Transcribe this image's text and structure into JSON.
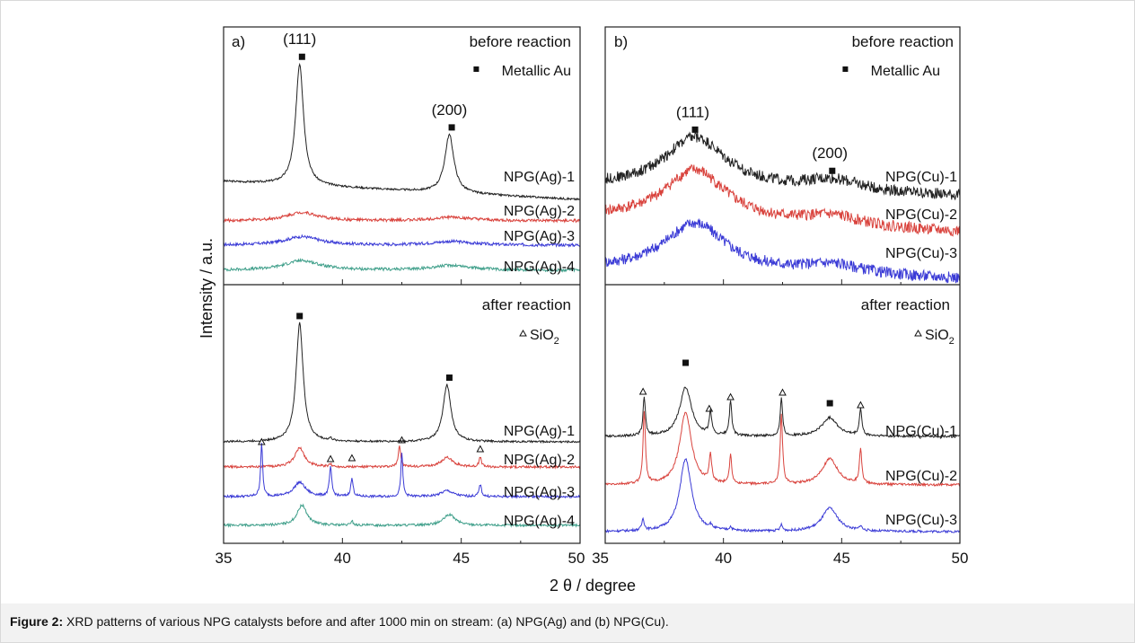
{
  "colors": {
    "black": "#222222",
    "red": "#d9433d",
    "blue": "#3b3bd6",
    "teal": "#3f9f8a"
  },
  "caption": {
    "label": "Figure 2:",
    "text": " XRD patterns of various NPG catalysts before and after 1000 min on stream: (a) NPG(Ag) and (b) NPG(Cu)."
  },
  "chart_data": {
    "type": "line",
    "xlabel": "2 θ / degree",
    "ylabel": "Intensity / a.u.",
    "xlim": [
      35,
      50
    ],
    "xticks": [
      "35",
      "40",
      "45",
      "50"
    ],
    "grid": false,
    "panels": [
      {
        "id": "a-before",
        "panel_label": "a)",
        "header": "before reaction",
        "legend": "Metallic Au",
        "legend_symbol": "square",
        "miller_labels": [
          {
            "text": "(111)",
            "x": 38.2,
            "peak_index": 0
          },
          {
            "text": "(200)",
            "x": 44.5,
            "peak_index": 1
          }
        ],
        "markers": [
          {
            "symbol": "square",
            "x": 38.3,
            "over_peak": 0
          },
          {
            "symbol": "square",
            "x": 44.6,
            "over_peak": 1
          }
        ],
        "series": [
          {
            "name": "NPG(Ag)-1",
            "color": "black",
            "noise": 0.008,
            "baseline": 0.0,
            "slope": -0.01,
            "peaks": [
              [
                38.2,
                1.0,
                0.2
              ],
              [
                44.5,
                0.48,
                0.23
              ]
            ]
          },
          {
            "name": "NPG(Ag)-2",
            "color": "red",
            "noise": 0.012,
            "baseline": 0.0,
            "slope": 0.0,
            "peaks": [
              [
                38.3,
                0.07,
                0.8
              ],
              [
                44.6,
                0.03,
                1.0
              ]
            ]
          },
          {
            "name": "NPG(Ag)-3",
            "color": "blue",
            "noise": 0.012,
            "baseline": 0.0,
            "slope": 0.0,
            "peaks": [
              [
                38.3,
                0.07,
                0.9
              ],
              [
                44.6,
                0.03,
                1.0
              ]
            ]
          },
          {
            "name": "NPG(Ag)-4",
            "color": "teal",
            "noise": 0.012,
            "baseline": 0.0,
            "slope": 0.0,
            "peaks": [
              [
                38.3,
                0.08,
                0.9
              ],
              [
                44.6,
                0.04,
                1.0
              ]
            ]
          }
        ]
      },
      {
        "id": "b-before",
        "panel_label": "b)",
        "header": "before reaction",
        "legend": "Metallic Au",
        "legend_symbol": "square",
        "miller_labels": [
          {
            "text": "(111)",
            "x": 38.7,
            "peak_index": 0
          },
          {
            "text": "(200)",
            "x": 44.5,
            "peak_index": 1
          }
        ],
        "markers": [
          {
            "symbol": "square",
            "x": 38.8,
            "over_peak": 0
          },
          {
            "symbol": "square",
            "x": 44.6,
            "over_peak": 1
          }
        ],
        "series": [
          {
            "name": "NPG(Cu)-1",
            "color": "black",
            "noise": 0.035,
            "baseline": 0.0,
            "slope": -0.004,
            "peaks": [
              [
                38.8,
                0.32,
                1.6
              ],
              [
                44.6,
                0.07,
                1.5
              ]
            ]
          },
          {
            "name": "NPG(Cu)-2",
            "color": "red",
            "noise": 0.035,
            "baseline": 0.0,
            "slope": -0.006,
            "peaks": [
              [
                38.8,
                0.32,
                1.6
              ],
              [
                44.6,
                0.06,
                1.5
              ]
            ]
          },
          {
            "name": "NPG(Cu)-3",
            "color": "blue",
            "noise": 0.035,
            "baseline": 0.0,
            "slope": -0.004,
            "peaks": [
              [
                38.8,
                0.3,
                1.6
              ],
              [
                44.6,
                0.06,
                1.5
              ]
            ]
          }
        ]
      },
      {
        "id": "a-after",
        "panel_label": "",
        "header": "after reaction",
        "legend": "SiO",
        "legend_sub": "2",
        "legend_symbol": "triangle",
        "markers": [
          {
            "symbol": "square",
            "x": 38.2,
            "over_peak": 0
          },
          {
            "symbol": "square",
            "x": 44.5,
            "over_peak": 1
          },
          {
            "symbol": "triangle",
            "x": 36.6
          },
          {
            "symbol": "triangle",
            "x": 39.5
          },
          {
            "symbol": "triangle",
            "x": 40.4
          },
          {
            "symbol": "triangle",
            "x": 42.5
          },
          {
            "symbol": "triangle",
            "x": 45.8
          }
        ],
        "series": [
          {
            "name": "NPG(Ag)-1",
            "color": "black",
            "noise": 0.008,
            "baseline": 0.0,
            "slope": 0.0,
            "peaks": [
              [
                38.2,
                1.0,
                0.18
              ],
              [
                44.4,
                0.48,
                0.2
              ],
              [
                39.5,
                0.02,
                0.06
              ]
            ]
          },
          {
            "name": "NPG(Ag)-2",
            "color": "red",
            "noise": 0.01,
            "baseline": 0.0,
            "slope": 0.0,
            "peaks": [
              [
                38.2,
                0.16,
                0.25
              ],
              [
                44.4,
                0.08,
                0.3
              ],
              [
                42.4,
                0.18,
                0.06
              ],
              [
                45.8,
                0.08,
                0.06
              ],
              [
                39.5,
                0.02,
                0.06
              ]
            ]
          },
          {
            "name": "NPG(Ag)-3",
            "color": "blue",
            "noise": 0.01,
            "baseline": 0.0,
            "slope": 0.0,
            "peaks": [
              [
                36.6,
                0.45,
                0.05
              ],
              [
                38.2,
                0.12,
                0.3
              ],
              [
                39.5,
                0.24,
                0.06
              ],
              [
                40.4,
                0.15,
                0.06
              ],
              [
                42.5,
                0.36,
                0.05
              ],
              [
                44.4,
                0.05,
                0.3
              ],
              [
                45.8,
                0.1,
                0.06
              ]
            ]
          },
          {
            "name": "NPG(Ag)-4",
            "color": "teal",
            "noise": 0.01,
            "baseline": 0.0,
            "slope": 0.0,
            "peaks": [
              [
                38.3,
                0.17,
                0.25
              ],
              [
                44.5,
                0.09,
                0.3
              ],
              [
                40.4,
                0.04,
                0.05
              ]
            ]
          }
        ]
      },
      {
        "id": "b-after",
        "panel_label": "",
        "header": "after reaction",
        "legend": "SiO",
        "legend_sub": "2",
        "legend_symbol": "triangle",
        "markers": [
          {
            "symbol": "triangle",
            "x": 36.6
          },
          {
            "symbol": "square",
            "x": 38.4
          },
          {
            "symbol": "triangle",
            "x": 39.4
          },
          {
            "symbol": "triangle",
            "x": 40.3
          },
          {
            "symbol": "triangle",
            "x": 42.5
          },
          {
            "symbol": "square",
            "x": 44.5
          },
          {
            "symbol": "triangle",
            "x": 45.8
          }
        ],
        "series": [
          {
            "name": "NPG(Cu)-1",
            "color": "black",
            "noise": 0.01,
            "baseline": 0.0,
            "slope": 0.0,
            "peaks": [
              [
                36.65,
                0.33,
                0.06
              ],
              [
                38.4,
                0.42,
                0.3
              ],
              [
                39.45,
                0.2,
                0.06
              ],
              [
                40.3,
                0.3,
                0.06
              ],
              [
                42.45,
                0.32,
                0.06
              ],
              [
                44.5,
                0.16,
                0.4
              ],
              [
                45.8,
                0.23,
                0.06
              ]
            ]
          },
          {
            "name": "NPG(Cu)-2",
            "color": "red",
            "noise": 0.01,
            "baseline": 0.0,
            "slope": 0.0,
            "peaks": [
              [
                36.65,
                0.62,
                0.06
              ],
              [
                38.4,
                0.62,
                0.3
              ],
              [
                39.45,
                0.24,
                0.06
              ],
              [
                40.3,
                0.24,
                0.06
              ],
              [
                42.45,
                0.6,
                0.06
              ],
              [
                44.5,
                0.22,
                0.4
              ],
              [
                45.8,
                0.3,
                0.06
              ]
            ]
          },
          {
            "name": "NPG(Cu)-3",
            "color": "blue",
            "noise": 0.01,
            "baseline": 0.0,
            "slope": 0.0,
            "peaks": [
              [
                36.6,
                0.1,
                0.06
              ],
              [
                38.4,
                0.62,
                0.3
              ],
              [
                39.45,
                0.03,
                0.06
              ],
              [
                40.3,
                0.03,
                0.06
              ],
              [
                42.45,
                0.05,
                0.06
              ],
              [
                44.5,
                0.2,
                0.4
              ],
              [
                45.8,
                0.04,
                0.06
              ]
            ]
          }
        ]
      }
    ]
  }
}
